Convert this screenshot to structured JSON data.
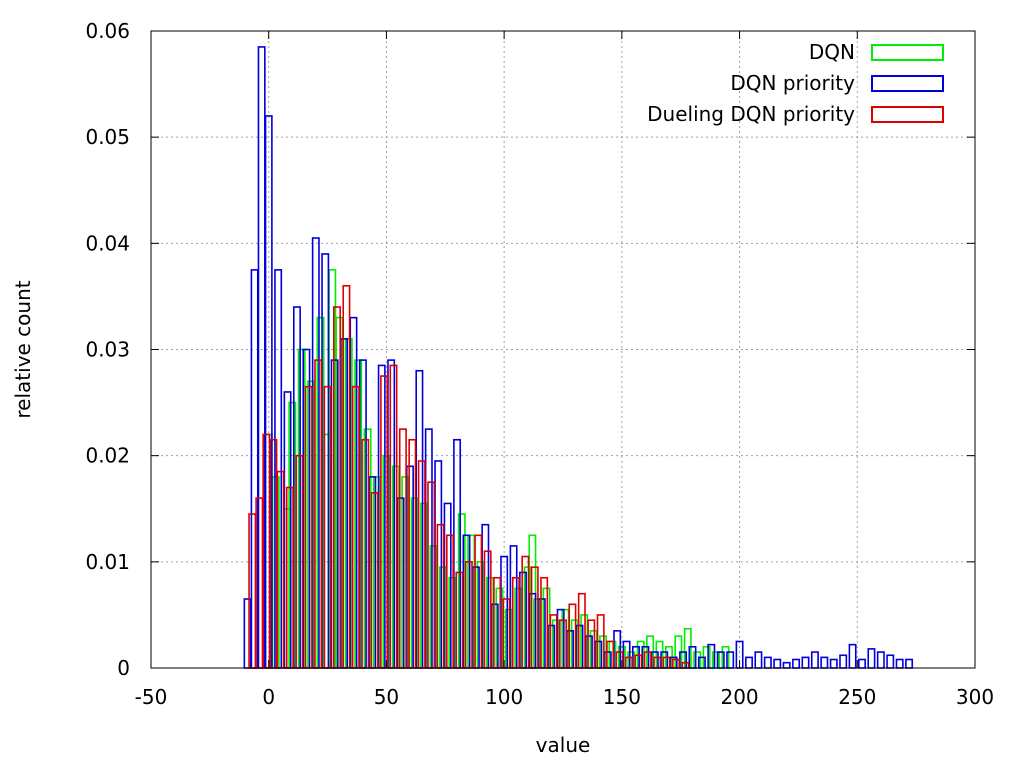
{
  "chart_data": {
    "type": "bar",
    "title": "",
    "xlabel": "value",
    "ylabel": "relative count",
    "xlim": [
      -50,
      300
    ],
    "ylim": [
      0,
      0.06
    ],
    "grid": true,
    "legend_position": "top-right",
    "xticks": [
      "-50",
      "0",
      "50",
      "100",
      "150",
      "200",
      "250",
      "300"
    ],
    "yticks": [
      "0",
      "0.01",
      "0.02",
      "0.03",
      "0.04",
      "0.05",
      "0.06"
    ],
    "series": [
      {
        "name": "DQN",
        "color": "#00ee00",
        "x": [
          0,
          3,
          8,
          10,
          14,
          18,
          22,
          25,
          27,
          30,
          34,
          38,
          42,
          46,
          50,
          54,
          58,
          62,
          66,
          70,
          74,
          78,
          82,
          86,
          90,
          94,
          98,
          102,
          106,
          110,
          112,
          114,
          118,
          122,
          126,
          130,
          134,
          138,
          142,
          146,
          150,
          154,
          158,
          162,
          166,
          170,
          174,
          178,
          182,
          186,
          190,
          194
        ],
        "values": [
          0.022,
          0.018,
          0.015,
          0.025,
          0.03,
          0.027,
          0.033,
          0.022,
          0.0375,
          0.033,
          0.031,
          0.029,
          0.0225,
          0.018,
          0.02,
          0.019,
          0.018,
          0.016,
          0.0155,
          0.0115,
          0.0095,
          0.0085,
          0.0145,
          0.0125,
          0.01,
          0.0085,
          0.0075,
          0.0055,
          0.0075,
          0.0095,
          0.0125,
          0.0065,
          0.0075,
          0.0045,
          0.0055,
          0.0045,
          0.005,
          0.0035,
          0.003,
          0.0025,
          0.002,
          0.0015,
          0.0025,
          0.003,
          0.0025,
          0.002,
          0.003,
          0.0037,
          0.0015,
          0.002,
          0.0015,
          0.002
        ]
      },
      {
        "name": "DQN priority",
        "color": "#0000dd",
        "x": [
          -9,
          -6,
          -3,
          0,
          4,
          8,
          12,
          16,
          20,
          24,
          28,
          32,
          36,
          40,
          44,
          48,
          52,
          56,
          60,
          64,
          68,
          72,
          76,
          80,
          84,
          88,
          92,
          96,
          100,
          104,
          108,
          112,
          116,
          120,
          124,
          128,
          132,
          136,
          140,
          144,
          148,
          152,
          156,
          160,
          164,
          168,
          172,
          176,
          180,
          184,
          188,
          192,
          196,
          200,
          204,
          208,
          212,
          216,
          220,
          224,
          228,
          232,
          236,
          240,
          244,
          248,
          252,
          256,
          260,
          264,
          268,
          272
        ],
        "values": [
          0.0065,
          0.0375,
          0.0585,
          0.052,
          0.0375,
          0.026,
          0.034,
          0.03,
          0.0405,
          0.039,
          0.029,
          0.031,
          0.033,
          0.029,
          0.018,
          0.0285,
          0.029,
          0.016,
          0.019,
          0.028,
          0.0225,
          0.0195,
          0.0155,
          0.0215,
          0.0125,
          0.0095,
          0.0135,
          0.006,
          0.0105,
          0.0115,
          0.009,
          0.007,
          0.0065,
          0.004,
          0.0055,
          0.0035,
          0.004,
          0.003,
          0.0025,
          0.0015,
          0.0035,
          0.0025,
          0.002,
          0.002,
          0.0015,
          0.0015,
          0.001,
          0.0015,
          0.002,
          0.001,
          0.0022,
          0.0015,
          0.0015,
          0.0025,
          0.001,
          0.0015,
          0.001,
          0.0008,
          0.0005,
          0.0008,
          0.001,
          0.0015,
          0.001,
          0.0008,
          0.0012,
          0.0022,
          0.0008,
          0.0018,
          0.0015,
          0.0012,
          0.0008,
          0.0008
        ]
      },
      {
        "name": "Dueling DQN priority",
        "color": "#dd0000",
        "x": [
          -7,
          -4,
          -1,
          2,
          5,
          9,
          13,
          17,
          21,
          25,
          29,
          33,
          37,
          41,
          45,
          49,
          53,
          57,
          61,
          65,
          69,
          73,
          77,
          81,
          85,
          89,
          93,
          97,
          101,
          105,
          109,
          113,
          117,
          121,
          125,
          129,
          133,
          137,
          141,
          145,
          149,
          153,
          157,
          161,
          165,
          169,
          173,
          177
        ],
        "values": [
          0.0145,
          0.016,
          0.022,
          0.0215,
          0.0185,
          0.017,
          0.02,
          0.0265,
          0.029,
          0.0265,
          0.034,
          0.036,
          0.0265,
          0.0215,
          0.0165,
          0.0275,
          0.0285,
          0.0225,
          0.0215,
          0.0195,
          0.0175,
          0.0135,
          0.0125,
          0.009,
          0.01,
          0.0125,
          0.011,
          0.0085,
          0.0065,
          0.0085,
          0.0105,
          0.0095,
          0.0085,
          0.005,
          0.0045,
          0.006,
          0.007,
          0.0045,
          0.005,
          0.0025,
          0.0015,
          0.001,
          0.0012,
          0.0015,
          0.001,
          0.001,
          0.0008,
          0.0005
        ]
      }
    ]
  }
}
